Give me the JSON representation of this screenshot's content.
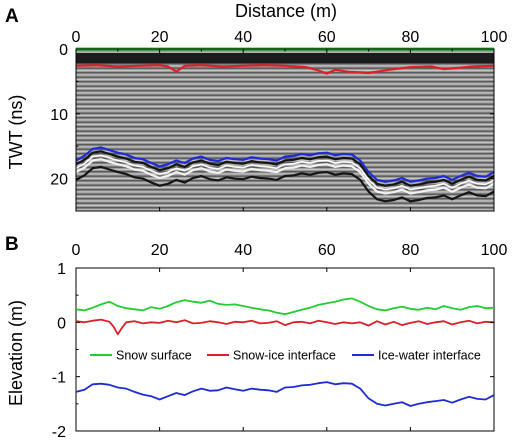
{
  "panels": {
    "a": {
      "letter": "A",
      "xlabel": "Distance (m)",
      "ylabel": "TWT (ns)"
    },
    "b": {
      "letter": "B",
      "ylabel": "Elevation (m)"
    }
  },
  "colors": {
    "snow_surface": "#22cc33",
    "snow_ice": "#dd1f2a",
    "ice_water": "#1f2bd6",
    "radargram_bg": "#8a8a8a"
  },
  "chart_data": [
    {
      "type": "line",
      "subtype": "radargram-with-picked-horizons",
      "xlabel": "Distance (m)",
      "ylabel": "TWT (ns)",
      "xlim": [
        0,
        100
      ],
      "ylim": [
        25,
        0
      ],
      "y_inverted": true,
      "x_ticks": [
        0,
        20,
        40,
        60,
        80,
        100
      ],
      "y_ticks": [
        0,
        10,
        20
      ],
      "x_tick_labels": [
        "0",
        "20",
        "40",
        "60",
        "80",
        "100"
      ],
      "y_tick_labels": [
        "0",
        "10",
        "20"
      ],
      "series": [
        {
          "color": "#22cc33",
          "x": [
            0,
            100
          ],
          "y": [
            0,
            0
          ]
        },
        {
          "color": "#dd1f2a",
          "x": [
            0,
            5,
            10,
            15,
            20,
            22,
            24,
            26,
            30,
            35,
            40,
            45,
            50,
            55,
            58,
            60,
            62,
            65,
            70,
            75,
            80,
            85,
            88,
            90,
            95,
            100
          ],
          "y": [
            2.6,
            2.5,
            2.7,
            2.6,
            2.5,
            2.7,
            3.5,
            2.6,
            2.5,
            2.7,
            2.6,
            2.5,
            2.6,
            2.8,
            3.3,
            3.8,
            3.2,
            3.5,
            3.7,
            3.2,
            2.8,
            2.7,
            3.1,
            3.0,
            2.7,
            2.6
          ]
        },
        {
          "color": "#1f2bd6",
          "x": [
            0,
            2,
            4,
            6,
            8,
            10,
            12,
            14,
            16,
            18,
            20,
            22,
            24,
            26,
            28,
            30,
            32,
            34,
            36,
            38,
            40,
            42,
            44,
            46,
            48,
            50,
            52,
            54,
            56,
            58,
            60,
            62,
            64,
            66,
            68,
            70,
            72,
            74,
            76,
            78,
            80,
            82,
            84,
            86,
            88,
            90,
            92,
            94,
            96,
            98,
            100
          ],
          "y": [
            17.2,
            16.5,
            15.4,
            15.2,
            15.6,
            16.0,
            16.3,
            16.8,
            17.0,
            17.6,
            18.1,
            17.8,
            17.2,
            17.6,
            16.9,
            16.6,
            17.1,
            17.3,
            16.8,
            17.0,
            17.1,
            16.7,
            16.9,
            17.0,
            17.2,
            16.6,
            16.5,
            16.2,
            16.4,
            16.1,
            16.0,
            16.4,
            16.2,
            16.3,
            17.2,
            19.0,
            20.2,
            20.5,
            20.3,
            19.9,
            20.5,
            20.3,
            20.0,
            19.9,
            19.6,
            20.2,
            19.6,
            19.1,
            19.6,
            19.7,
            19.0
          ]
        }
      ]
    },
    {
      "type": "line",
      "xlabel": "",
      "ylabel": "Elevation (m)",
      "xlim": [
        0,
        100
      ],
      "ylim": [
        -2,
        1
      ],
      "x_ticks": [
        0,
        20,
        40,
        60,
        80,
        100
      ],
      "y_ticks": [
        1,
        0,
        -1,
        -2
      ],
      "x_tick_labels": [
        "0",
        "20",
        "40",
        "60",
        "80",
        "100"
      ],
      "y_tick_labels": [
        "1",
        "0",
        "-1",
        "-2"
      ],
      "legend": {
        "placement": "center",
        "entries": [
          {
            "name": "Snow surface",
            "color": "#22cc33"
          },
          {
            "name": "Snow-ice interface",
            "color": "#dd1f2a"
          },
          {
            "name": "Ice-water interface",
            "color": "#1f2bd6"
          }
        ]
      },
      "series": [
        {
          "name": "Snow surface",
          "color": "#22cc33",
          "x": [
            0,
            2,
            4,
            6,
            8,
            10,
            12,
            14,
            16,
            18,
            20,
            22,
            24,
            26,
            28,
            30,
            32,
            34,
            36,
            38,
            40,
            42,
            44,
            46,
            48,
            50,
            52,
            54,
            56,
            58,
            60,
            62,
            64,
            66,
            68,
            70,
            72,
            74,
            76,
            78,
            80,
            82,
            84,
            86,
            88,
            90,
            92,
            94,
            96,
            98,
            100
          ],
          "y": [
            0.24,
            0.22,
            0.27,
            0.33,
            0.38,
            0.3,
            0.26,
            0.24,
            0.22,
            0.28,
            0.25,
            0.3,
            0.37,
            0.41,
            0.38,
            0.36,
            0.4,
            0.34,
            0.32,
            0.33,
            0.3,
            0.27,
            0.24,
            0.22,
            0.18,
            0.15,
            0.19,
            0.23,
            0.27,
            0.32,
            0.35,
            0.38,
            0.42,
            0.44,
            0.38,
            0.3,
            0.24,
            0.22,
            0.26,
            0.29,
            0.25,
            0.23,
            0.27,
            0.24,
            0.3,
            0.26,
            0.23,
            0.28,
            0.3,
            0.26,
            0.27
          ]
        },
        {
          "name": "Snow-ice interface",
          "color": "#dd1f2a",
          "x": [
            0,
            2,
            4,
            6,
            8,
            9,
            10,
            11,
            12,
            14,
            16,
            18,
            20,
            22,
            24,
            26,
            28,
            30,
            32,
            34,
            36,
            38,
            40,
            42,
            44,
            46,
            48,
            50,
            52,
            54,
            56,
            58,
            60,
            62,
            64,
            66,
            68,
            70,
            72,
            74,
            76,
            78,
            80,
            82,
            84,
            86,
            88,
            90,
            92,
            94,
            96,
            98,
            100
          ],
          "y": [
            0.02,
            0.0,
            0.03,
            0.05,
            0.01,
            -0.08,
            -0.22,
            -0.1,
            0.0,
            0.02,
            -0.02,
            0.0,
            -0.01,
            0.03,
            0.0,
            0.04,
            -0.02,
            -0.01,
            0.02,
            0.0,
            -0.03,
            0.01,
            0.0,
            0.03,
            -0.02,
            -0.01,
            0.02,
            -0.05,
            0.0,
            0.01,
            -0.02,
            0.03,
            0.0,
            -0.03,
            0.0,
            -0.02,
            0.0,
            -0.06,
            0.02,
            -0.04,
            0.01,
            -0.05,
            -0.01,
            0.02,
            -0.03,
            0.0,
            0.02,
            -0.04,
            0.0,
            0.03,
            -0.02,
            0.01,
            0.0
          ]
        },
        {
          "name": "Ice-water interface",
          "color": "#1f2bd6",
          "x": [
            0,
            2,
            4,
            6,
            8,
            10,
            12,
            14,
            16,
            18,
            20,
            22,
            24,
            26,
            28,
            30,
            32,
            34,
            36,
            38,
            40,
            42,
            44,
            46,
            48,
            50,
            52,
            54,
            56,
            58,
            60,
            62,
            64,
            66,
            68,
            70,
            72,
            74,
            76,
            78,
            80,
            82,
            84,
            86,
            88,
            90,
            92,
            94,
            96,
            98,
            100
          ],
          "y": [
            -1.28,
            -1.24,
            -1.14,
            -1.13,
            -1.15,
            -1.2,
            -1.22,
            -1.28,
            -1.33,
            -1.36,
            -1.42,
            -1.36,
            -1.3,
            -1.34,
            -1.27,
            -1.22,
            -1.26,
            -1.25,
            -1.2,
            -1.23,
            -1.26,
            -1.22,
            -1.24,
            -1.25,
            -1.28,
            -1.2,
            -1.19,
            -1.16,
            -1.15,
            -1.12,
            -1.1,
            -1.14,
            -1.12,
            -1.13,
            -1.22,
            -1.4,
            -1.5,
            -1.53,
            -1.5,
            -1.47,
            -1.54,
            -1.5,
            -1.47,
            -1.45,
            -1.43,
            -1.48,
            -1.42,
            -1.37,
            -1.41,
            -1.42,
            -1.34
          ]
        }
      ]
    }
  ]
}
